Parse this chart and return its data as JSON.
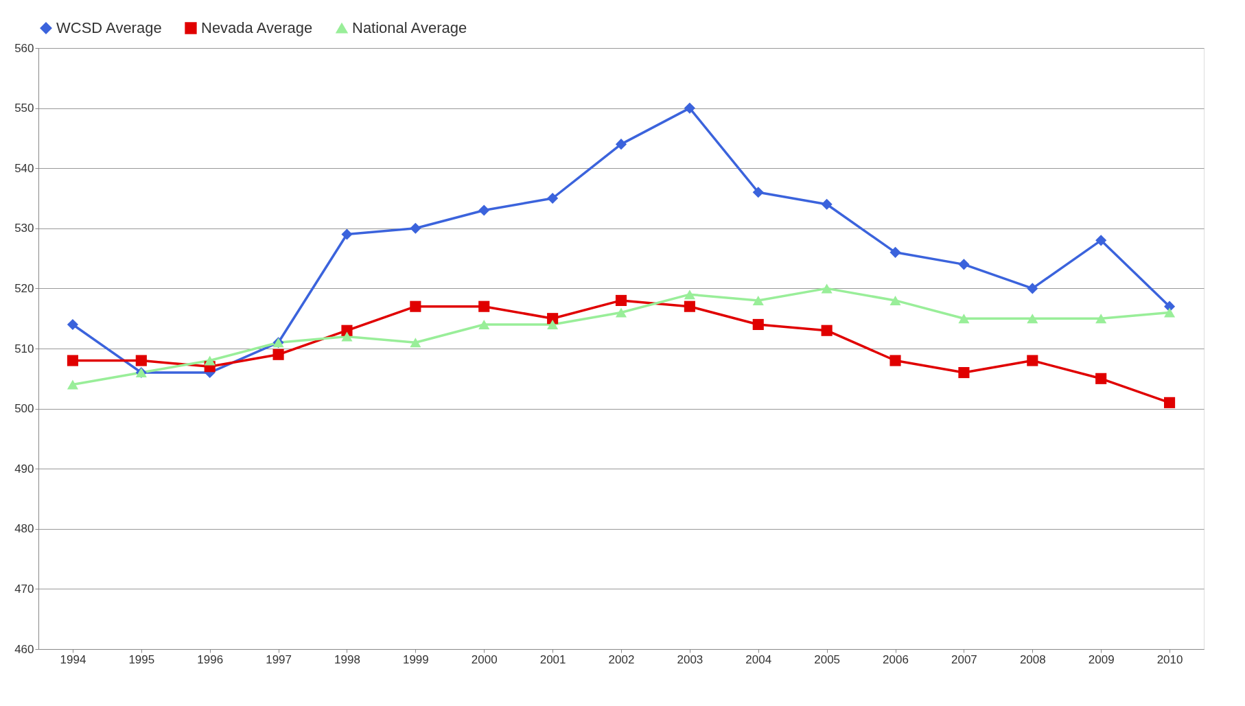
{
  "chart_data": {
    "type": "line",
    "categories": [
      "1994",
      "1995",
      "1996",
      "1997",
      "1998",
      "1999",
      "2000",
      "2001",
      "2002",
      "2003",
      "2004",
      "2005",
      "2006",
      "2007",
      "2008",
      "2009",
      "2010"
    ],
    "series": [
      {
        "name": "WCSD Average",
        "color": "#3b63dc",
        "marker": "diamond",
        "values": [
          514,
          506,
          506,
          511,
          529,
          530,
          533,
          535,
          544,
          550,
          536,
          534,
          526,
          524,
          520,
          528,
          517
        ]
      },
      {
        "name": "Nevada Average",
        "color": "#e00000",
        "marker": "square",
        "values": [
          508,
          508,
          507,
          509,
          513,
          517,
          517,
          515,
          518,
          517,
          514,
          513,
          508,
          506,
          508,
          505,
          501
        ]
      },
      {
        "name": "National Average",
        "color": "#99ee99",
        "marker": "triangle",
        "values": [
          504,
          506,
          508,
          511,
          512,
          511,
          514,
          514,
          516,
          519,
          518,
          520,
          518,
          515,
          515,
          515,
          516
        ]
      }
    ],
    "ylim": [
      460,
      560
    ],
    "yticks": [
      460,
      470,
      480,
      490,
      500,
      510,
      520,
      530,
      540,
      550,
      560
    ],
    "grid": "y",
    "legend": "top",
    "line_style": "solid"
  }
}
